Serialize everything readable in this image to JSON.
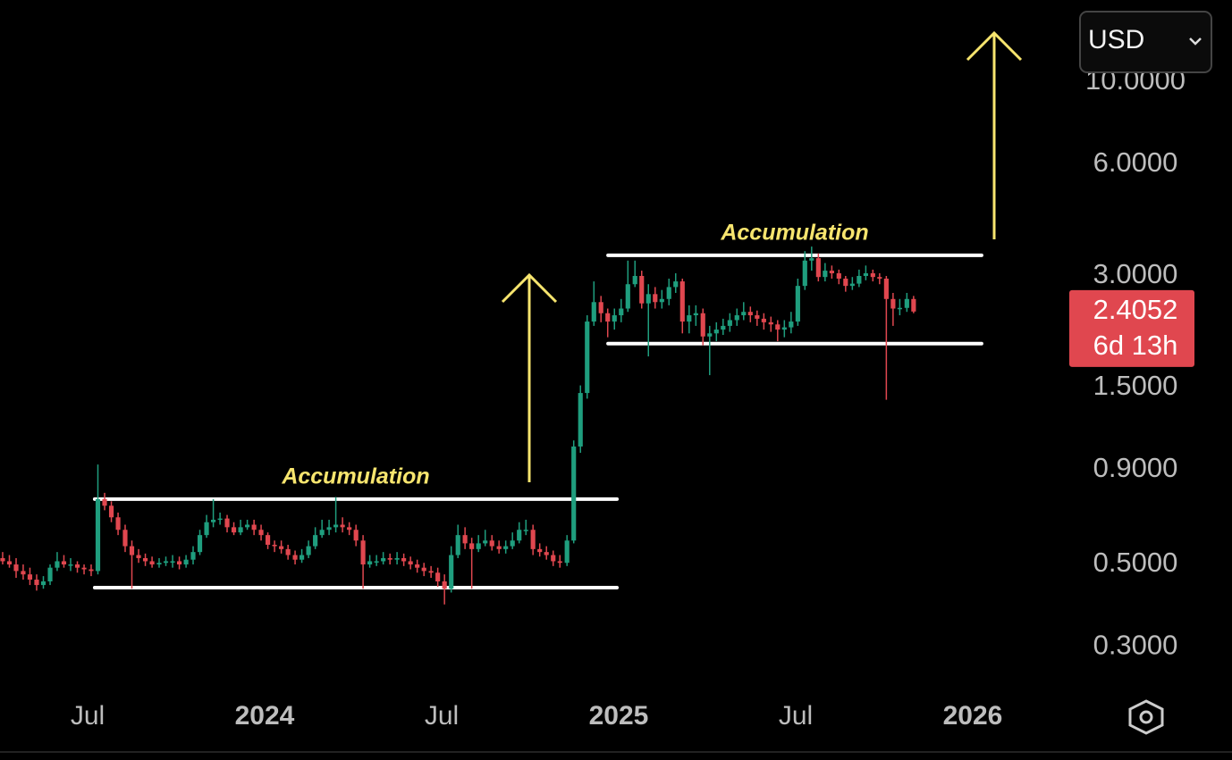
{
  "currency": "USD",
  "chart_data": {
    "type": "candlestick",
    "x": [
      2023.26,
      2023.279,
      2023.298,
      2023.318,
      2023.337,
      2023.356,
      2023.375,
      2023.394,
      2023.414,
      2023.433,
      2023.452,
      2023.471,
      2023.49,
      2023.51,
      2023.529,
      2023.548,
      2023.567,
      2023.586,
      2023.606,
      2023.625,
      2023.644,
      2023.663,
      2023.682,
      2023.702,
      2023.721,
      2023.74,
      2023.759,
      2023.778,
      2023.798,
      2023.817,
      2023.836,
      2023.855,
      2023.874,
      2023.894,
      2023.913,
      2023.932,
      2023.951,
      2023.97,
      2023.99,
      2024.009,
      2024.028,
      2024.047,
      2024.066,
      2024.086,
      2024.105,
      2024.124,
      2024.143,
      2024.162,
      2024.182,
      2024.201,
      2024.22,
      2024.239,
      2024.258,
      2024.278,
      2024.297,
      2024.316,
      2024.335,
      2024.354,
      2024.374,
      2024.393,
      2024.412,
      2024.431,
      2024.45,
      2024.47,
      2024.489,
      2024.508,
      2024.527,
      2024.546,
      2024.566,
      2024.585,
      2024.604,
      2024.623,
      2024.642,
      2024.662,
      2024.681,
      2024.7,
      2024.719,
      2024.738,
      2024.758,
      2024.777,
      2024.796,
      2024.815,
      2024.834,
      2024.854,
      2024.873,
      2024.892,
      2024.911,
      2024.93,
      2024.95,
      2024.969,
      2024.988,
      2025.007,
      2025.026,
      2025.046,
      2025.065,
      2025.084,
      2025.103,
      2025.122,
      2025.142,
      2025.161,
      2025.18,
      2025.199,
      2025.218,
      2025.238,
      2025.257,
      2025.276,
      2025.295,
      2025.314,
      2025.334,
      2025.353,
      2025.372,
      2025.391,
      2025.41,
      2025.43,
      2025.449,
      2025.468,
      2025.487,
      2025.506,
      2025.526,
      2025.545,
      2025.564,
      2025.583,
      2025.602,
      2025.622,
      2025.641,
      2025.66,
      2025.679,
      2025.698,
      2025.718,
      2025.737,
      2025.756,
      2025.775,
      2025.794,
      2025.814,
      2025.833
    ],
    "open": [
      0.52,
      0.51,
      0.5,
      0.48,
      0.47,
      0.455,
      0.44,
      0.45,
      0.49,
      0.51,
      0.5,
      0.5,
      0.49,
      0.485,
      0.48,
      0.75,
      0.72,
      0.67,
      0.62,
      0.56,
      0.53,
      0.52,
      0.51,
      0.5,
      0.505,
      0.51,
      0.51,
      0.5,
      0.515,
      0.54,
      0.6,
      0.65,
      0.66,
      0.665,
      0.63,
      0.61,
      0.63,
      0.64,
      0.62,
      0.6,
      0.565,
      0.56,
      0.55,
      0.53,
      0.515,
      0.53,
      0.56,
      0.6,
      0.62,
      0.63,
      0.64,
      0.63,
      0.62,
      0.58,
      0.5,
      0.51,
      0.51,
      0.52,
      0.515,
      0.52,
      0.51,
      0.5,
      0.49,
      0.48,
      0.475,
      0.45,
      0.43,
      0.53,
      0.6,
      0.57,
      0.55,
      0.57,
      0.58,
      0.56,
      0.55,
      0.56,
      0.58,
      0.62,
      0.62,
      0.55,
      0.54,
      0.53,
      0.51,
      0.505,
      0.58,
      1.04,
      1.45,
      2.26,
      2.55,
      2.38,
      2.26,
      2.35,
      2.45,
      2.85,
      3.0,
      2.53,
      2.68,
      2.55,
      2.6,
      2.8,
      2.9,
      2.26,
      2.35,
      2.38,
      2.06,
      2.1,
      2.15,
      2.2,
      2.28,
      2.35,
      2.4,
      2.35,
      2.3,
      2.25,
      2.22,
      2.15,
      2.18,
      2.26,
      2.82,
      3.3,
      3.35,
      2.98,
      3.1,
      3.05,
      2.95,
      2.82,
      2.86,
      3.0,
      3.05,
      2.98,
      2.95,
      2.6,
      2.45,
      2.46,
      2.6
    ],
    "high": [
      0.54,
      0.53,
      0.52,
      0.5,
      0.49,
      0.47,
      0.465,
      0.5,
      0.54,
      0.53,
      0.52,
      0.51,
      0.5,
      0.5,
      0.93,
      0.78,
      0.74,
      0.69,
      0.64,
      0.58,
      0.55,
      0.535,
      0.525,
      0.52,
      0.525,
      0.53,
      0.525,
      0.53,
      0.56,
      0.62,
      0.68,
      0.75,
      0.69,
      0.68,
      0.65,
      0.66,
      0.66,
      0.66,
      0.64,
      0.61,
      0.58,
      0.58,
      0.565,
      0.545,
      0.55,
      0.58,
      0.63,
      0.66,
      0.66,
      0.76,
      0.67,
      0.65,
      0.64,
      0.6,
      0.53,
      0.53,
      0.54,
      0.535,
      0.54,
      0.535,
      0.525,
      0.515,
      0.505,
      0.495,
      0.49,
      0.47,
      0.56,
      0.64,
      0.63,
      0.59,
      0.6,
      0.62,
      0.6,
      0.58,
      0.58,
      0.61,
      0.65,
      0.66,
      0.64,
      0.57,
      0.56,
      0.545,
      0.53,
      0.6,
      1.08,
      1.52,
      2.35,
      2.9,
      2.65,
      2.45,
      2.45,
      2.6,
      3.3,
      3.3,
      3.1,
      2.85,
      2.8,
      2.75,
      2.95,
      3.05,
      2.95,
      2.5,
      2.5,
      2.45,
      2.2,
      2.25,
      2.3,
      2.38,
      2.45,
      2.55,
      2.48,
      2.42,
      2.38,
      2.33,
      2.28,
      2.28,
      2.4,
      2.95,
      3.5,
      3.6,
      3.45,
      3.25,
      3.2,
      3.12,
      3.0,
      2.98,
      3.12,
      3.2,
      3.12,
      3.05,
      3.0,
      2.7,
      2.6,
      2.7,
      2.65
    ],
    "low": [
      0.5,
      0.49,
      0.46,
      0.455,
      0.44,
      0.425,
      0.43,
      0.44,
      0.48,
      0.49,
      0.48,
      0.475,
      0.47,
      0.465,
      0.47,
      0.7,
      0.65,
      0.6,
      0.54,
      0.43,
      0.505,
      0.495,
      0.49,
      0.49,
      0.495,
      0.49,
      0.485,
      0.49,
      0.5,
      0.53,
      0.59,
      0.63,
      0.64,
      0.61,
      0.6,
      0.6,
      0.62,
      0.6,
      0.58,
      0.55,
      0.54,
      0.535,
      0.515,
      0.5,
      0.505,
      0.52,
      0.55,
      0.59,
      0.6,
      0.61,
      0.61,
      0.6,
      0.56,
      0.43,
      0.49,
      0.495,
      0.5,
      0.5,
      0.5,
      0.495,
      0.485,
      0.475,
      0.465,
      0.46,
      0.435,
      0.39,
      0.42,
      0.52,
      0.55,
      0.43,
      0.54,
      0.56,
      0.545,
      0.535,
      0.535,
      0.55,
      0.57,
      0.6,
      0.53,
      0.525,
      0.515,
      0.495,
      0.49,
      0.495,
      0.57,
      1.0,
      1.4,
      2.2,
      2.25,
      2.05,
      2.15,
      2.25,
      2.4,
      2.8,
      2.45,
      1.82,
      2.45,
      2.45,
      2.5,
      2.7,
      2.1,
      2.1,
      2.2,
      1.95,
      1.62,
      2.0,
      2.08,
      2.12,
      2.2,
      2.28,
      2.25,
      2.2,
      2.15,
      2.12,
      2.0,
      2.05,
      2.1,
      2.2,
      2.75,
      3.1,
      2.9,
      2.9,
      2.95,
      2.85,
      2.72,
      2.75,
      2.8,
      2.92,
      2.9,
      2.85,
      1.39,
      2.2,
      2.35,
      2.4,
      2.38
    ],
    "close": [
      0.51,
      0.5,
      0.48,
      0.47,
      0.455,
      0.44,
      0.45,
      0.49,
      0.51,
      0.5,
      0.5,
      0.49,
      0.485,
      0.48,
      0.75,
      0.72,
      0.67,
      0.62,
      0.56,
      0.53,
      0.52,
      0.51,
      0.5,
      0.505,
      0.51,
      0.51,
      0.5,
      0.515,
      0.54,
      0.6,
      0.65,
      0.66,
      0.665,
      0.63,
      0.61,
      0.63,
      0.64,
      0.62,
      0.6,
      0.565,
      0.56,
      0.55,
      0.53,
      0.515,
      0.53,
      0.56,
      0.6,
      0.62,
      0.63,
      0.64,
      0.63,
      0.62,
      0.58,
      0.5,
      0.51,
      0.51,
      0.52,
      0.515,
      0.52,
      0.51,
      0.5,
      0.49,
      0.48,
      0.475,
      0.45,
      0.43,
      0.53,
      0.6,
      0.57,
      0.55,
      0.57,
      0.58,
      0.56,
      0.55,
      0.56,
      0.58,
      0.62,
      0.62,
      0.55,
      0.54,
      0.53,
      0.51,
      0.505,
      0.58,
      1.04,
      1.45,
      2.26,
      2.55,
      2.38,
      2.26,
      2.35,
      2.45,
      2.85,
      3.0,
      2.53,
      2.68,
      2.55,
      2.6,
      2.8,
      2.9,
      2.26,
      2.35,
      2.38,
      2.06,
      2.1,
      2.15,
      2.2,
      2.28,
      2.35,
      2.4,
      2.35,
      2.3,
      2.25,
      2.22,
      2.15,
      2.18,
      2.26,
      2.82,
      3.3,
      3.35,
      2.98,
      3.1,
      3.05,
      2.95,
      2.82,
      2.86,
      3.0,
      3.05,
      2.98,
      2.95,
      2.6,
      2.45,
      2.46,
      2.6,
      2.4052
    ],
    "up_color": "#1f9e7e",
    "down_color": "#e0474f",
    "log_scale": true,
    "xlim": [
      2023.2525,
      2026.2576
    ],
    "xticks": [
      {
        "value": 2023.5,
        "label": "Jul"
      },
      2024,
      {
        "value": 2024.5,
        "label": "Jul"
      },
      2025,
      {
        "value": 2025.5,
        "label": "Jul"
      },
      2026
    ],
    "ylim": [
      0.2326,
      16.65
    ],
    "yticks": [
      {
        "value": 0.3,
        "label": "0.3000"
      },
      {
        "value": 0.5,
        "label": "0.5000"
      },
      {
        "value": 0.9,
        "label": "0.9000"
      },
      {
        "value": 1.5,
        "label": "1.5000"
      },
      {
        "value": 3,
        "label": "3.0000"
      },
      {
        "value": 6,
        "label": "6.0000"
      },
      {
        "value": 10,
        "label": "10.0000"
      }
    ],
    "annotations": [
      {
        "text": "Accumulation",
        "top": 0.75,
        "bottom": 0.433,
        "x0": 2023.52,
        "x1": 2024.995
      },
      {
        "text": "Accumulation",
        "top": 3.41,
        "bottom": 1.97,
        "x0": 2024.97,
        "x1": 2026.025
      }
    ],
    "countdown": "6d 13h"
  }
}
